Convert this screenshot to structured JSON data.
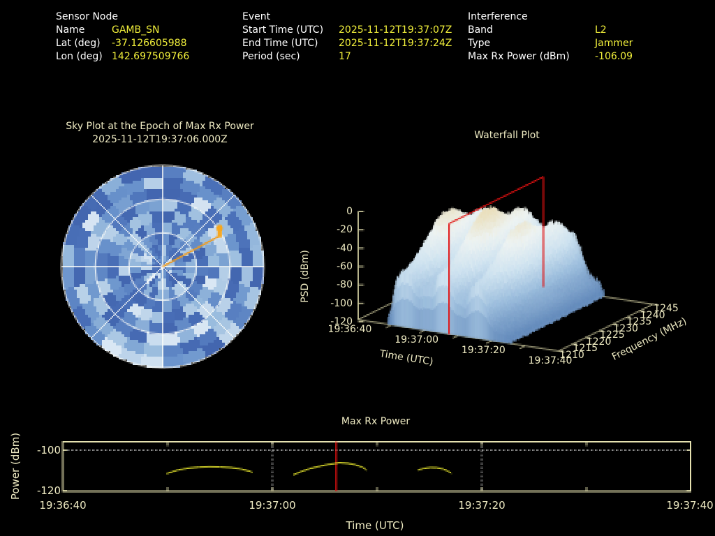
{
  "header": {
    "sensor": {
      "title": "Sensor Node",
      "rows": [
        {
          "label": "Name",
          "value": "GAMB_SN"
        },
        {
          "label": "Lat (deg)",
          "value": "-37.126605988"
        },
        {
          "label": "Lon (deg)",
          "value": "142.697509766"
        }
      ]
    },
    "event": {
      "title": "Event",
      "rows": [
        {
          "label": "Start Time (UTC)",
          "value": "2025-11-12T19:37:07Z"
        },
        {
          "label": "End Time (UTC)",
          "value": "2025-11-12T19:37:24Z"
        },
        {
          "label": "Period (sec)",
          "value": "17"
        }
      ]
    },
    "interference": {
      "title": "Interference",
      "rows": [
        {
          "label": "Band",
          "value": "L2"
        },
        {
          "label": "Type",
          "value": "Jammer"
        },
        {
          "label": "Max Rx Power (dBm)",
          "value": "-106.09"
        }
      ]
    }
  },
  "colors": {
    "background": "#000000",
    "label_text": "#ffffff",
    "value_text": "#f0ee3a",
    "chart_text": "#eeeac2",
    "axis_line": "#e6e2b0",
    "grid_dotted": "#c8c8c8",
    "curve_yellow": "#e8e62e",
    "cursor_red": "#e11111",
    "slice_plane_red": "#e11111",
    "sky_grid": "#ffffff",
    "sky_marker_orange": "#f6a71f",
    "sky_line_orange": "#f09b1d"
  },
  "charts": {
    "sky": {
      "title": "Sky Plot at the Epoch of Max Rx Power",
      "subtitle": "2025-11-12T19:37:06.000Z",
      "marker": {
        "azimuth_deg": 59,
        "elevation_deg": 31
      },
      "elevation_rings_deg": [
        30,
        60
      ],
      "azimuth_spokes_deg": 45,
      "seed": 99,
      "palette": [
        "#3b5ba6",
        "#4a70b8",
        "#6a93cc",
        "#97badd",
        "#c3d8ec",
        "#e9f1f9"
      ]
    },
    "waterfall": {
      "title": "Waterfall Plot",
      "xlabel": "Time (UTC)",
      "ylabel": "PSD (dBm)",
      "flabel": "Frequency (MHz)",
      "time_ticks": [
        "19:36:40",
        "19:37:00",
        "19:37:20",
        "19:37:40"
      ],
      "time_tick_seconds": [
        0,
        20,
        40,
        60
      ],
      "time_minor_seconds": [
        10,
        20,
        30,
        40,
        50
      ],
      "freq_ticks": [
        1210,
        1215,
        1220,
        1225,
        1230,
        1235,
        1240,
        1245
      ],
      "psd_ticks": [
        0,
        -20,
        -40,
        -60,
        -80,
        -100,
        -120
      ],
      "slice_second": 27.2
    },
    "power": {
      "title": "Max Rx Power",
      "xlabel": "Time (UTC)",
      "ylabel": "Power (dBm)",
      "x_ticks": [
        "19:36:40",
        "19:37:00",
        "19:37:20",
        "19:37:40"
      ],
      "x_tick_seconds": [
        0,
        20,
        40,
        60
      ],
      "minor_tick_seconds": [
        10,
        20,
        30,
        40,
        50
      ],
      "y_ticks": [
        -100,
        -120
      ],
      "grid_h_dbm": [
        -100
      ],
      "grid_v_seconds": [
        20,
        40
      ],
      "cursor_second": 26.1
    }
  },
  "chart_data": [
    {
      "type": "heatmap",
      "name": "sky-plot",
      "title": "Sky Plot at the Epoch of Max Rx Power",
      "subtitle": "2025-11-12T19:37:06.000Z",
      "projection": "polar-azimuth-elevation",
      "elevation_rings_deg": [
        30,
        60
      ],
      "marker": {
        "azimuth_deg": 59,
        "elevation_deg": 31,
        "color": "#f6a71f"
      },
      "az_bins": 28,
      "el_bins": 9,
      "seed": 99,
      "value_range_note": "relative received power, blue(low) to white(high)"
    },
    {
      "type": "area",
      "name": "waterfall-3d-surface",
      "title": "Waterfall Plot",
      "xlabel": "Time (UTC)",
      "ylabel": "PSD (dBm)",
      "zlabel": "Frequency (MHz)",
      "time_range": [
        "19:36:40",
        "19:37:40"
      ],
      "freq_range_mhz": [
        1210,
        1245
      ],
      "psd_range_dbm": [
        -120,
        0
      ],
      "slice_plane_time": "19:37:07",
      "surface_model": {
        "t_start": 8.5,
        "t_end": 46.0,
        "base_dbm": -118,
        "peak_dbm": -8,
        "amp_db": 110,
        "bursts": [
          {
            "center_s": 14.0,
            "width_s": 6.0,
            "amp": 0.92
          },
          {
            "center_s": 25.5,
            "width_s": 5.5,
            "amp": 1.0
          },
          {
            "center_s": 35.5,
            "width_s": 5.0,
            "amp": 0.9
          },
          {
            "center_s": 24.0,
            "width_s": 17.0,
            "amp": 0.72
          }
        ],
        "freq_profile": {
          "base": 0.55,
          "peaks": [
            {
              "center_mhz": 1226,
              "width_mhz": 9,
              "amp": 0.45
            },
            {
              "center_mhz": 1239,
              "width_mhz": 5,
              "amp": 0.22
            }
          ]
        },
        "noise_db": 2.5,
        "seed": 12345
      }
    },
    {
      "type": "line",
      "name": "max-rx-power",
      "title": "Max Rx Power",
      "xlabel": "Time (UTC)",
      "ylabel": "Power (dBm)",
      "x_start": "19:36:40",
      "x_end": "19:37:40",
      "ylim": [
        -120.5,
        -95.9
      ],
      "cursor_time": "19:37:06",
      "series_seconds_dbm": [
        [
          [
            9.9,
            -111.6
          ],
          [
            11,
            -109.8
          ],
          [
            12,
            -108.9
          ],
          [
            13,
            -108.4
          ],
          [
            14,
            -108.2
          ],
          [
            15,
            -108.3
          ],
          [
            16,
            -108.6
          ],
          [
            17,
            -109.3
          ],
          [
            17.9,
            -110.5
          ],
          [
            18.1,
            -111.0
          ]
        ],
        [
          [
            22,
            -112.2
          ],
          [
            22.8,
            -110.5
          ],
          [
            23.6,
            -109.1
          ],
          [
            24.4,
            -108.1
          ],
          [
            25.2,
            -107.2
          ],
          [
            25.9,
            -106.7
          ],
          [
            26.4,
            -106.2
          ],
          [
            27.2,
            -106.5
          ],
          [
            27.9,
            -107.2
          ],
          [
            28.6,
            -108.4
          ],
          [
            29,
            -109.8
          ]
        ],
        [
          [
            33.9,
            -109.8
          ],
          [
            34.5,
            -109.0
          ],
          [
            35.1,
            -108.6
          ],
          [
            35.7,
            -108.7
          ],
          [
            36.3,
            -109.3
          ],
          [
            36.7,
            -110.2
          ],
          [
            37.1,
            -111.4
          ]
        ]
      ]
    }
  ]
}
